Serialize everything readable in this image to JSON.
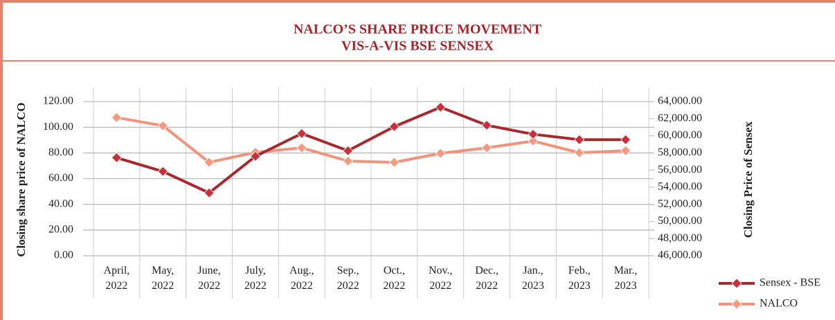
{
  "chart_data": {
    "type": "line",
    "title": "NALCO’S SHARE PRICE MOVEMENT",
    "subtitle": "VIS-A-VIS BSE SENSEX",
    "ylabel": "Closing share price of NALCO",
    "y2label": "Closing Price of Sensex",
    "categories": [
      "April, 2022",
      "May, 2022",
      "June, 2022",
      "July, 2022",
      "Aug., 2022",
      "Sep., 2022",
      "Oct., 2022",
      "Nov., 2022",
      "Dec., 2022",
      "Jan., 2023",
      "Feb., 2023",
      "Mar., 2023"
    ],
    "series": [
      {
        "name": "Sensex - BSE",
        "color": "#a8282e",
        "marker_color": "#c8303c",
        "axis": "y2",
        "values": [
          57450,
          55840,
          53340,
          57610,
          60270,
          58260,
          61080,
          63340,
          61240,
          60190,
          59550,
          59550
        ]
      },
      {
        "name": "NALCO",
        "color": "#f0937a",
        "marker_color": "#f39a80",
        "values": [
          107.6,
          101.2,
          72.7,
          80.5,
          84,
          73.7,
          72.7,
          79.7,
          84,
          89.3,
          80.2,
          81.8
        ]
      }
    ],
    "ylim": [
      0,
      120
    ],
    "yticks": [
      {
        "value": 0,
        "label": "0.00"
      },
      {
        "value": 20,
        "label": "20.00"
      },
      {
        "value": 40,
        "label": "40.00"
      },
      {
        "value": 60,
        "label": "60.00"
      },
      {
        "value": 80,
        "label": "80.00"
      },
      {
        "value": 100,
        "label": "100.00"
      },
      {
        "value": 120,
        "label": "120.00"
      }
    ],
    "y2lim": [
      46000,
      64000
    ],
    "y2ticks": [
      {
        "value": 46000,
        "label": "46,000.00"
      },
      {
        "value": 48000,
        "label": "48,000.00"
      },
      {
        "value": 50000,
        "label": "50,000.00"
      },
      {
        "value": 52000,
        "label": "52,000.00"
      },
      {
        "value": 54000,
        "label": "54,000.00"
      },
      {
        "value": 56000,
        "label": "56,000.00"
      },
      {
        "value": 58000,
        "label": "58,000.00"
      },
      {
        "value": 60000,
        "label": "60,000.00"
      },
      {
        "value": 62000,
        "label": "62,000.00"
      },
      {
        "value": 64000,
        "label": "64,000.00"
      }
    ],
    "grid": true,
    "legend": "bottom-right"
  }
}
